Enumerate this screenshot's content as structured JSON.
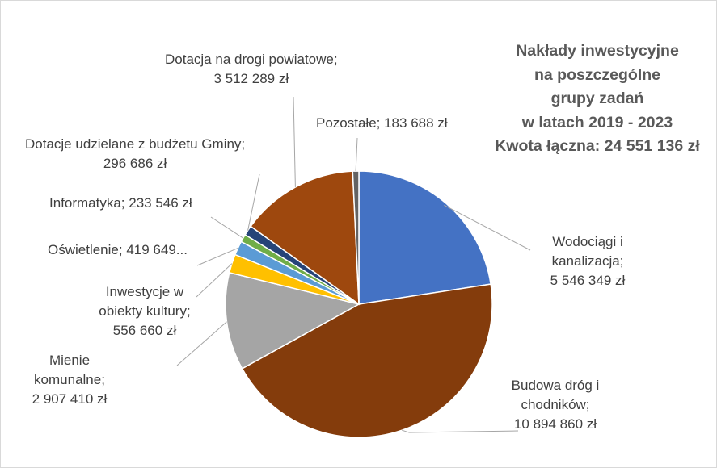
{
  "chart_data": {
    "type": "pie",
    "title_lines": [
      "Nakłady inwestycyjne",
      "na poszczególne",
      "grupy zadań",
      "w latach 2019 - 2023",
      "Kwota łączna: 24 551 136 zł"
    ],
    "slices": [
      {
        "name": "Wodociągi i kanalizacja",
        "value": 5546349,
        "color": "#4472C4",
        "label_lines": [
          "Wodociągi i",
          "kanalizacja;",
          "5 546 349 zł"
        ]
      },
      {
        "name": "Budowa dróg i chodników",
        "value": 10894860,
        "color": "#843C0C",
        "label_lines": [
          "Budowa dróg i",
          "chodników;",
          "10 894 860 zł"
        ]
      },
      {
        "name": "Mienie komunalne",
        "value": 2907410,
        "color": "#A5A5A5",
        "label_lines": [
          "Mienie",
          "komunalne;",
          "2 907 410 zł"
        ]
      },
      {
        "name": "Inwestycje w obiekty kultury",
        "value": 556660,
        "color": "#FFC000",
        "label_lines": [
          "Inwestycje w",
          "obiekty kultury;",
          "556 660 zł"
        ]
      },
      {
        "name": "Oświetlenie",
        "value": 419649,
        "color": "#5B9BD5",
        "label_lines": [
          "Oświetlenie; 419 649..."
        ]
      },
      {
        "name": "Informatyka",
        "value": 233546,
        "color": "#70AD47",
        "label_lines": [
          "Informatyka; 233 546 zł"
        ]
      },
      {
        "name": "Dotacje udzielane z budżetu Gminy",
        "value": 296686,
        "color": "#264478",
        "label_lines": [
          "Dotacje udzielane z budżetu Gminy;",
          "296 686 zł"
        ]
      },
      {
        "name": "Dotacja na drogi powiatowe",
        "value": 3512289,
        "color": "#9E480E",
        "label_lines": [
          "Dotacja na drogi powiatowe;",
          "3 512 289 zł"
        ]
      },
      {
        "name": "Pozostałe",
        "value": 183688,
        "color": "#636363",
        "label_lines": [
          "Pozostałe; 183 688 zł"
        ]
      }
    ]
  }
}
